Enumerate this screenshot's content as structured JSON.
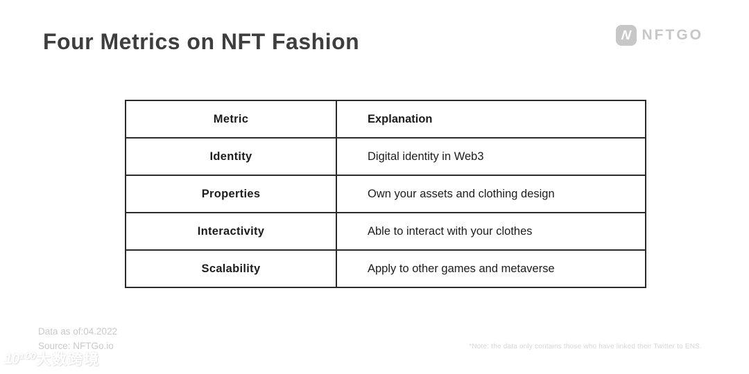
{
  "header": {
    "title": "Four Metrics on NFT Fashion",
    "logo": {
      "mark_letter": "N",
      "wordmark": "NFTGO"
    }
  },
  "table": {
    "columns": [
      "Metric",
      "Explanation"
    ],
    "rows": [
      {
        "metric": "Identity",
        "explanation": "Digital identity in Web3"
      },
      {
        "metric": "Properties",
        "explanation": "Own your assets and clothing design"
      },
      {
        "metric": "Interactivity",
        "explanation": "Able to interact with your clothes"
      },
      {
        "metric": "Scalability",
        "explanation": "Apply to other games and metaverse"
      }
    ]
  },
  "footer": {
    "data_as_of": "Data as of:04.2022",
    "source": "Source: NFTGo.io",
    "watermark_logo": "10¹⁰⁰",
    "watermark_text": "大数跨境",
    "note": "*Note: the data only contains those who have linked their Twitter to ENS."
  },
  "colors": {
    "title": "#3e3e3e",
    "table_border": "#2b2b2b",
    "table_text": "#1c1c1c",
    "muted_gray": "#c9c9c9",
    "logo_gray": "#c7c7c7",
    "background": "#ffffff"
  }
}
